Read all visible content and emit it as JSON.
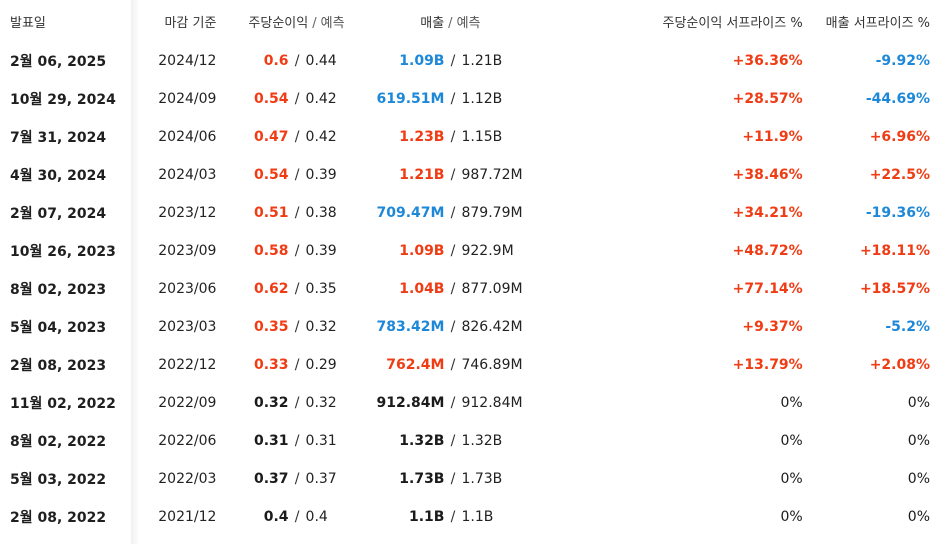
{
  "header": {
    "date": "발표일",
    "period": "마감 기준",
    "eps": "주당순이익",
    "eps_sep": "/",
    "eps_forecast": "예측",
    "rev": "매출",
    "rev_sep": "/",
    "rev_forecast": "예측",
    "eps_surprise": "주당순이익 서프라이즈 %",
    "rev_surprise": "매출 서프라이즈 %"
  },
  "colors": {
    "positive": "#f03c14",
    "negative": "#1e88d8",
    "neutral": "#1b1b1b"
  },
  "rows": [
    {
      "date": "2월 06, 2025",
      "period": "2024/12",
      "eps": "0.6",
      "eps_est": "0.44",
      "eps_dir": "pos",
      "rev": "1.09B",
      "rev_est": "1.21B",
      "rev_dir": "neg",
      "eps_s": "+36.36%",
      "eps_s_dir": "pos",
      "rev_s": "-9.92%",
      "rev_s_dir": "neg"
    },
    {
      "date": "10월 29, 2024",
      "period": "2024/09",
      "eps": "0.54",
      "eps_est": "0.42",
      "eps_dir": "pos",
      "rev": "619.51M",
      "rev_est": "1.12B",
      "rev_dir": "neg",
      "eps_s": "+28.57%",
      "eps_s_dir": "pos",
      "rev_s": "-44.69%",
      "rev_s_dir": "neg"
    },
    {
      "date": "7월 31, 2024",
      "period": "2024/06",
      "eps": "0.47",
      "eps_est": "0.42",
      "eps_dir": "pos",
      "rev": "1.23B",
      "rev_est": "1.15B",
      "rev_dir": "pos",
      "eps_s": "+11.9%",
      "eps_s_dir": "pos",
      "rev_s": "+6.96%",
      "rev_s_dir": "pos"
    },
    {
      "date": "4월 30, 2024",
      "period": "2024/03",
      "eps": "0.54",
      "eps_est": "0.39",
      "eps_dir": "pos",
      "rev": "1.21B",
      "rev_est": "987.72M",
      "rev_dir": "pos",
      "eps_s": "+38.46%",
      "eps_s_dir": "pos",
      "rev_s": "+22.5%",
      "rev_s_dir": "pos"
    },
    {
      "date": "2월 07, 2024",
      "period": "2023/12",
      "eps": "0.51",
      "eps_est": "0.38",
      "eps_dir": "pos",
      "rev": "709.47M",
      "rev_est": "879.79M",
      "rev_dir": "neg",
      "eps_s": "+34.21%",
      "eps_s_dir": "pos",
      "rev_s": "-19.36%",
      "rev_s_dir": "neg"
    },
    {
      "date": "10월 26, 2023",
      "period": "2023/09",
      "eps": "0.58",
      "eps_est": "0.39",
      "eps_dir": "pos",
      "rev": "1.09B",
      "rev_est": "922.9M",
      "rev_dir": "pos",
      "eps_s": "+48.72%",
      "eps_s_dir": "pos",
      "rev_s": "+18.11%",
      "rev_s_dir": "pos"
    },
    {
      "date": "8월 02, 2023",
      "period": "2023/06",
      "eps": "0.62",
      "eps_est": "0.35",
      "eps_dir": "pos",
      "rev": "1.04B",
      "rev_est": "877.09M",
      "rev_dir": "pos",
      "eps_s": "+77.14%",
      "eps_s_dir": "pos",
      "rev_s": "+18.57%",
      "rev_s_dir": "pos"
    },
    {
      "date": "5월 04, 2023",
      "period": "2023/03",
      "eps": "0.35",
      "eps_est": "0.32",
      "eps_dir": "pos",
      "rev": "783.42M",
      "rev_est": "826.42M",
      "rev_dir": "neg",
      "eps_s": "+9.37%",
      "eps_s_dir": "pos",
      "rev_s": "-5.2%",
      "rev_s_dir": "neg"
    },
    {
      "date": "2월 08, 2023",
      "period": "2022/12",
      "eps": "0.33",
      "eps_est": "0.29",
      "eps_dir": "pos",
      "rev": "762.4M",
      "rev_est": "746.89M",
      "rev_dir": "pos",
      "eps_s": "+13.79%",
      "eps_s_dir": "pos",
      "rev_s": "+2.08%",
      "rev_s_dir": "pos"
    },
    {
      "date": "11월 02, 2022",
      "period": "2022/09",
      "eps": "0.32",
      "eps_est": "0.32",
      "eps_dir": "neu",
      "rev": "912.84M",
      "rev_est": "912.84M",
      "rev_dir": "neu",
      "eps_s": "0%",
      "eps_s_dir": "neu",
      "rev_s": "0%",
      "rev_s_dir": "neu"
    },
    {
      "date": "8월 02, 2022",
      "period": "2022/06",
      "eps": "0.31",
      "eps_est": "0.31",
      "eps_dir": "neu",
      "rev": "1.32B",
      "rev_est": "1.32B",
      "rev_dir": "neu",
      "eps_s": "0%",
      "eps_s_dir": "neu",
      "rev_s": "0%",
      "rev_s_dir": "neu"
    },
    {
      "date": "5월 03, 2022",
      "period": "2022/03",
      "eps": "0.37",
      "eps_est": "0.37",
      "eps_dir": "neu",
      "rev": "1.73B",
      "rev_est": "1.73B",
      "rev_dir": "neu",
      "eps_s": "0%",
      "eps_s_dir": "neu",
      "rev_s": "0%",
      "rev_s_dir": "neu"
    },
    {
      "date": "2월 08, 2022",
      "period": "2021/12",
      "eps": "0.4",
      "eps_est": "0.4",
      "eps_dir": "neu",
      "rev": "1.1B",
      "rev_est": "1.1B",
      "rev_dir": "neu",
      "eps_s": "0%",
      "eps_s_dir": "neu",
      "rev_s": "0%",
      "rev_s_dir": "neu"
    }
  ]
}
